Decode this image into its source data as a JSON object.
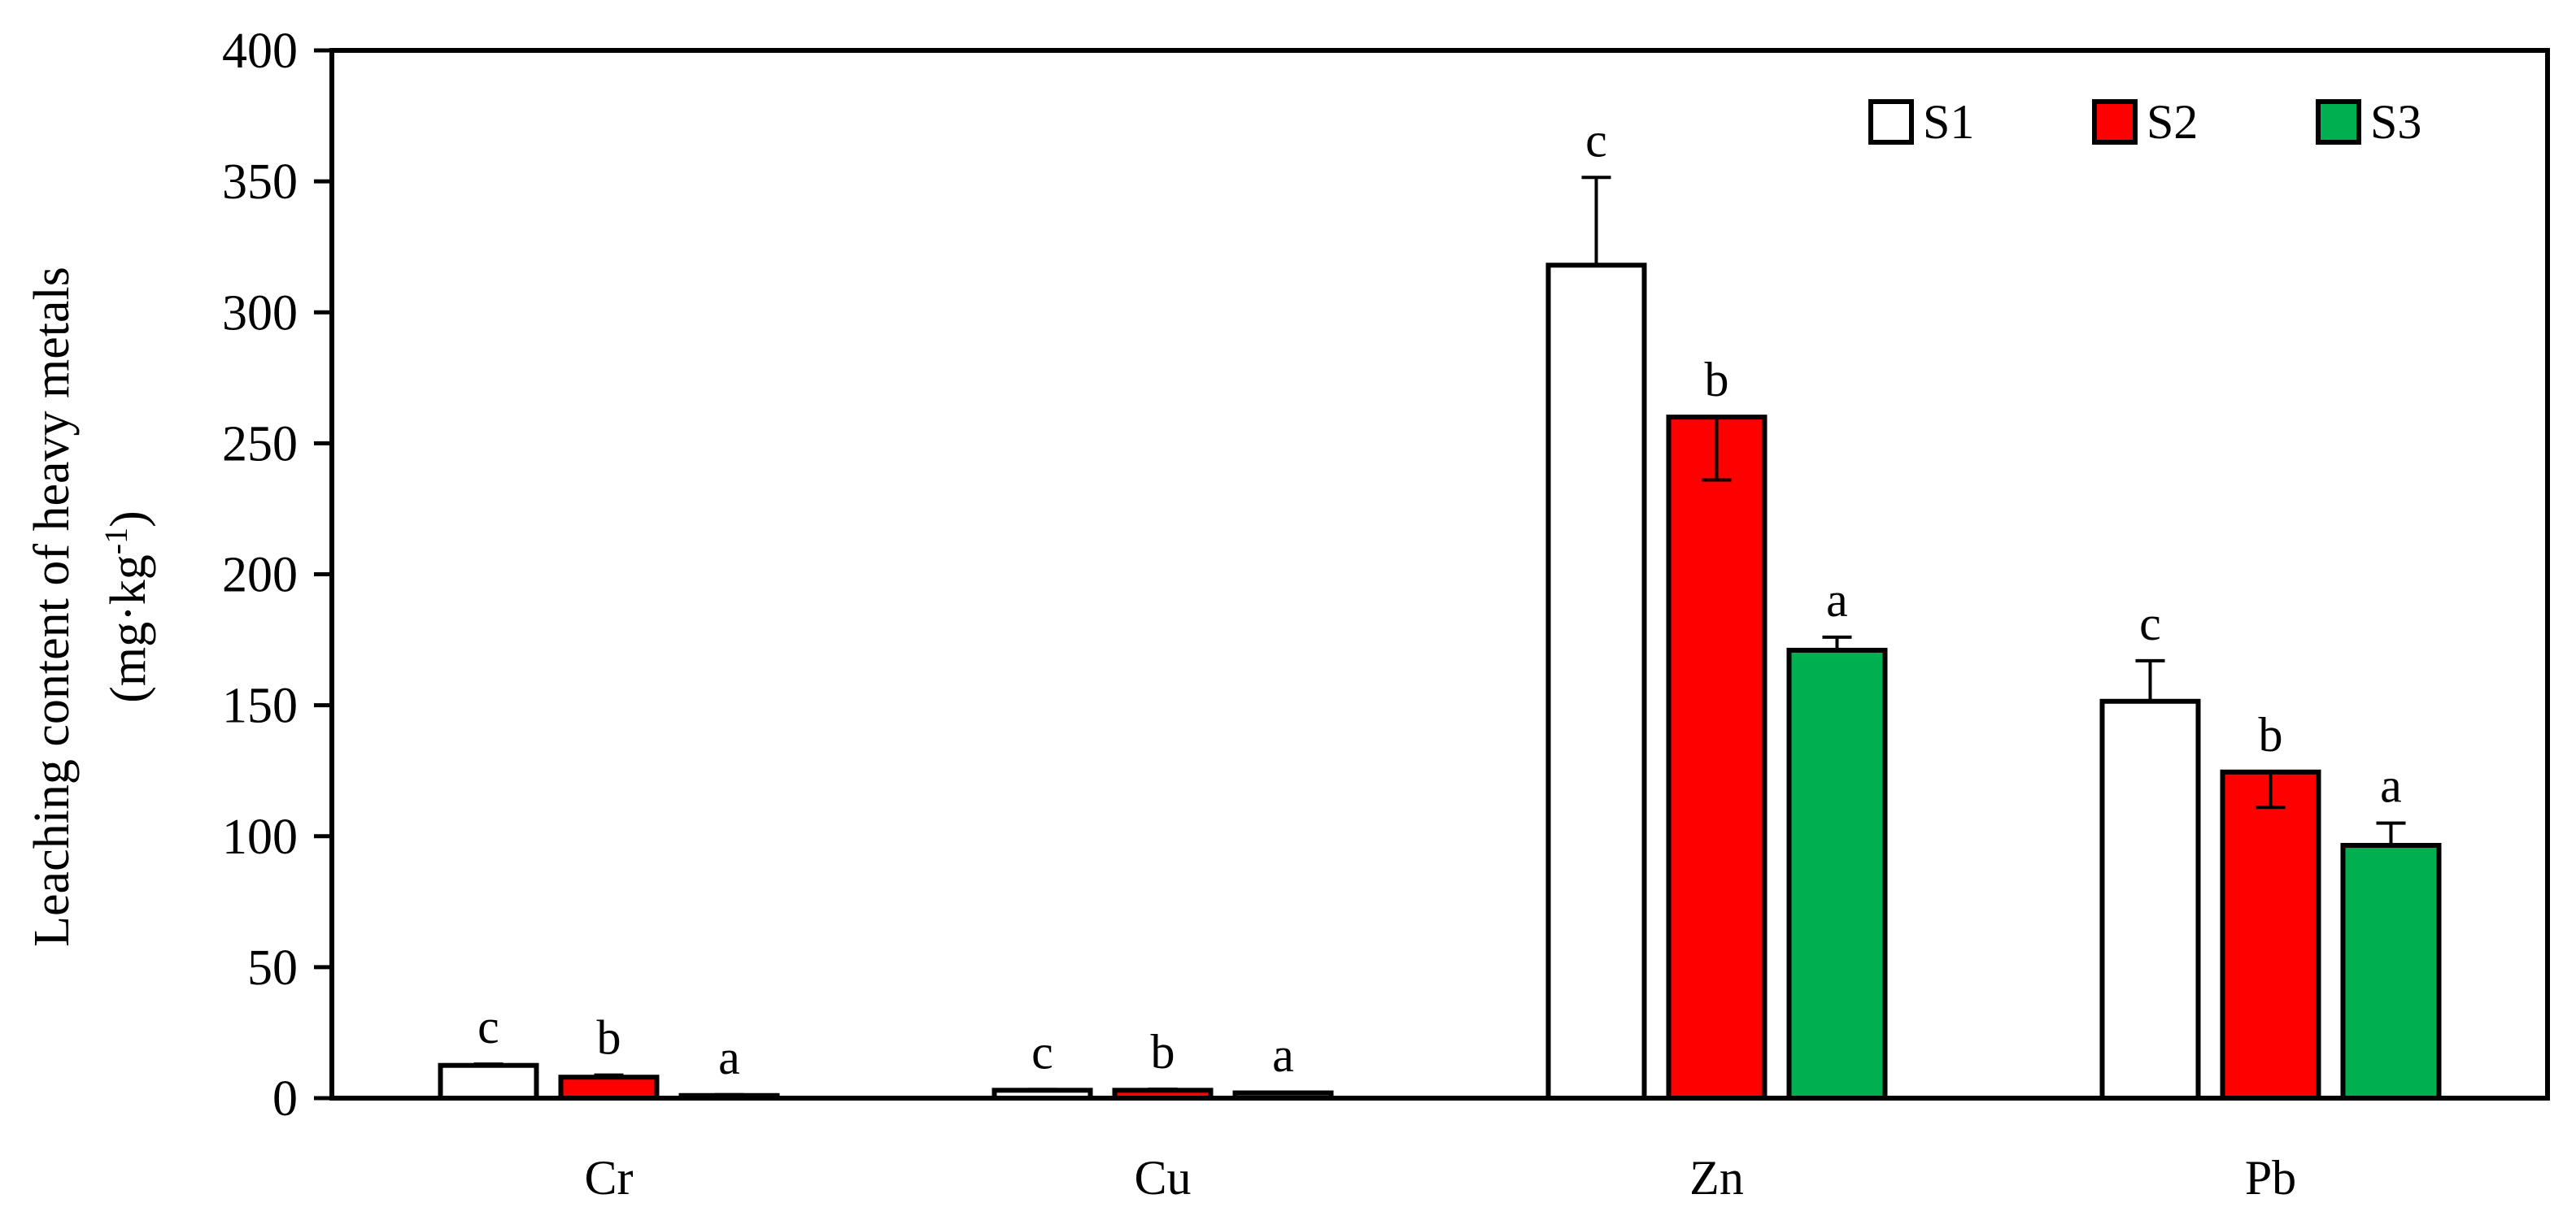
{
  "chart_data": {
    "type": "bar",
    "title": "",
    "xlabel": "",
    "ylabel": "Leaching content of  heavy metals",
    "ylabel_unit": {
      "prefix": "(mg·kg",
      "superscript": "-1",
      "suffix": ")"
    },
    "ylim": [
      0,
      400
    ],
    "yticks": [
      0,
      50,
      100,
      150,
      200,
      250,
      300,
      350,
      400
    ],
    "grid": false,
    "legend_position": "top-right",
    "categories": [
      "Cr",
      "Cu",
      "Zn",
      "Pb"
    ],
    "series": [
      {
        "name": "S1",
        "color": "#ffffff",
        "values": [
          12.5,
          3,
          318,
          151.5
        ],
        "error": [
          0.5,
          0.3,
          33.5,
          15.5
        ],
        "error_direction": [
          "up",
          "up",
          "up",
          "up"
        ],
        "letters": [
          "c",
          "c",
          "c",
          "c"
        ]
      },
      {
        "name": "S2",
        "color": "#ff0000",
        "values": [
          8,
          3,
          260,
          124.5
        ],
        "error": [
          0.8,
          0.4,
          24,
          13.5
        ],
        "error_direction": [
          "up",
          "up",
          "down",
          "down"
        ],
        "letters": [
          "b",
          "b",
          "b",
          "b"
        ]
      },
      {
        "name": "S3",
        "color": "#00b050",
        "values": [
          1,
          2,
          171,
          96.5
        ],
        "error": [
          0.3,
          0.2,
          5,
          8.5
        ],
        "error_direction": [
          "up",
          "up",
          "up",
          "up"
        ],
        "letters": [
          "a",
          "a",
          "a",
          "a"
        ]
      }
    ]
  }
}
